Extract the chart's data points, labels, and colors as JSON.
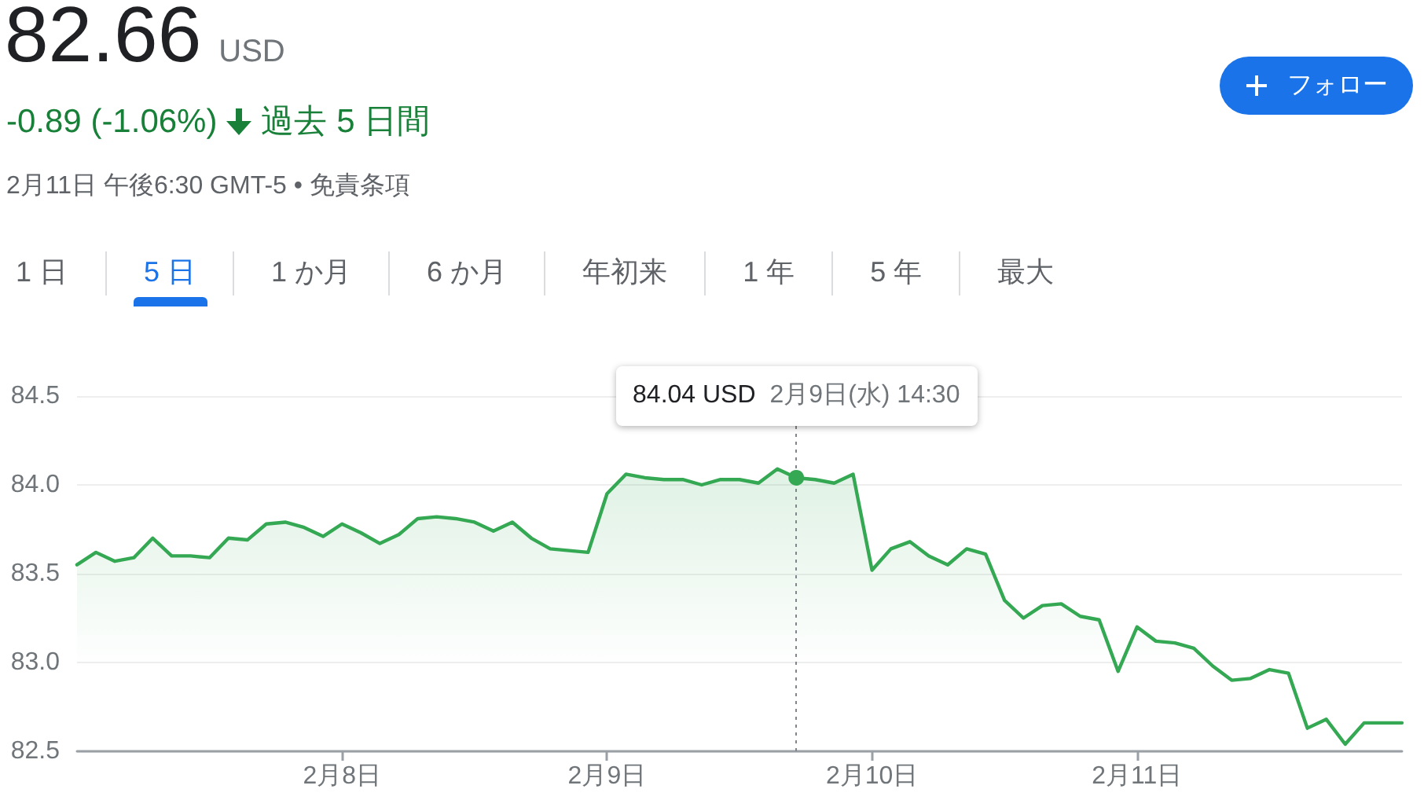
{
  "chart_data": {
    "type": "area",
    "title": "82.66",
    "subtitle": "-0.89 (-1.06%)",
    "annotations": [
      "USD",
      "過去 5 日間",
      "2月11日 午後6:30 GMT-5 • 免責条項",
      "フォロー",
      "1 日",
      "5 日",
      "1 か月",
      "6 か月",
      "年初来",
      "1 年",
      "5 年",
      "最大",
      {
        "text": "84.04 USD",
        "y": 84.04
      },
      "2月9日(水) 14:30"
    ],
    "categories": [
      null,
      null,
      null,
      null,
      null,
      null,
      null,
      null,
      null,
      null,
      null,
      null,
      null,
      null,
      "2月8日",
      null,
      null,
      null,
      null,
      null,
      null,
      null,
      null,
      null,
      null,
      null,
      null,
      null,
      "2月9日",
      null,
      null,
      null,
      null,
      null,
      null,
      null,
      null,
      null,
      null,
      null,
      null,
      null,
      "2月10日",
      null,
      null,
      null,
      null,
      null,
      null,
      null,
      null,
      null,
      null,
      null,
      null,
      null,
      "2月11日",
      null,
      null,
      null,
      null,
      null,
      null,
      null,
      null,
      null,
      null,
      null,
      null,
      null,
      null
    ],
    "values": [
      83.55,
      83.62,
      83.57,
      83.59,
      83.7,
      83.6,
      83.6,
      83.59,
      83.7,
      83.69,
      83.78,
      83.79,
      83.76,
      83.71,
      83.78,
      83.73,
      83.67,
      83.72,
      83.81,
      83.82,
      83.81,
      83.79,
      83.74,
      83.79,
      83.7,
      83.64,
      83.63,
      83.62,
      83.95,
      84.06,
      84.04,
      84.03,
      84.03,
      84.0,
      84.03,
      84.03,
      84.01,
      84.09,
      84.04,
      84.03,
      84.01,
      84.06,
      83.52,
      83.64,
      83.68,
      83.6,
      83.55,
      83.64,
      83.61,
      83.35,
      83.25,
      83.32,
      83.33,
      83.26,
      83.24,
      82.95,
      83.2,
      83.12,
      83.11,
      83.08,
      82.98,
      82.9,
      82.91,
      82.96,
      82.94,
      82.63,
      82.68,
      82.54,
      82.66,
      82.66,
      82.66
    ],
    "color": "#34a853",
    "ylim": [
      82.5,
      84.5
    ],
    "yticks": [
      82.5,
      {
        "value": 83,
        "label": "83.0"
      },
      83.5,
      {
        "value": 84,
        "label": "84.0"
      },
      84.5
    ],
    "grid": "y",
    "marker": "none"
  }
}
